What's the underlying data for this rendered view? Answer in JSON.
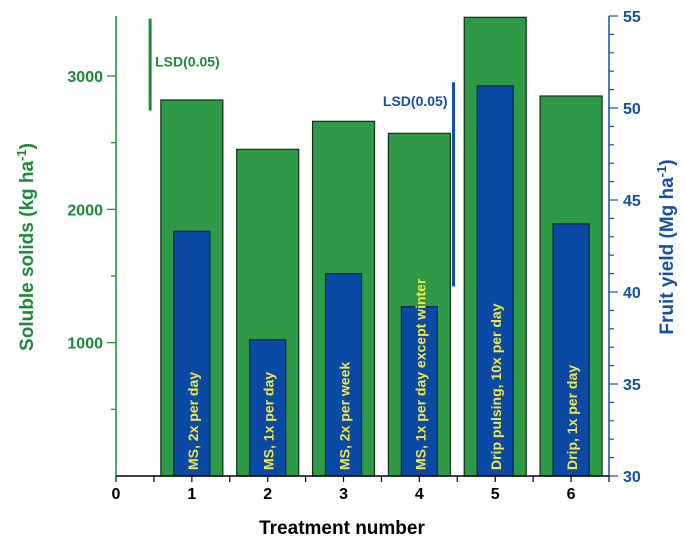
{
  "colors": {
    "green": "#2e9a48",
    "green_edge": "#0f2f17",
    "green_label": "#1b8b3a",
    "blue": "#0a4aa5",
    "blue_edge": "#061d45",
    "blue_label": "#1450a3",
    "bar_text": "#f0e64a",
    "axis": "#000000"
  },
  "chart_data": {
    "type": "bar",
    "xlabel": "Treatment number",
    "x_ticks": [
      "0",
      "1",
      "2",
      "3",
      "4",
      "5",
      "6"
    ],
    "xlim": [
      0,
      6.5
    ],
    "y_left": {
      "label": "Soluble solids (kg ha",
      "label_sup": "-1",
      "label_close": ")",
      "ylim": [
        0,
        3450
      ],
      "ticks": [
        1000,
        2000,
        3000
      ],
      "tick_labels": [
        "1000",
        "2000",
        "3000"
      ]
    },
    "y_right": {
      "label": "Fruit yield (Mg ha",
      "label_sup": "-1",
      "label_close": ")",
      "ylim": [
        30,
        55
      ],
      "ticks": [
        30,
        35,
        40,
        45,
        50,
        55
      ],
      "tick_labels": [
        "30",
        "35",
        "40",
        "45",
        "50",
        "55"
      ]
    },
    "series": [
      {
        "axis": "left",
        "values": [
          2820,
          2450,
          2660,
          2570,
          3440,
          2850
        ]
      },
      {
        "axis": "right",
        "values": [
          43.3,
          37.4,
          41.0,
          39.2,
          51.2,
          43.7
        ]
      }
    ],
    "treatments": [
      {
        "x": 1,
        "label": "MS, 2x per day"
      },
      {
        "x": 2,
        "label": "MS, 1x per day"
      },
      {
        "x": 3,
        "label": "MS, 2x per week"
      },
      {
        "x": 4,
        "label": "MS, 1x per day except winter"
      },
      {
        "x": 5,
        "label": "Drip pulsing, 10x per day"
      },
      {
        "x": 6,
        "label": "Drip, 1x per day"
      }
    ],
    "lsd": [
      {
        "label": "LSD(0.05)",
        "axis": "left",
        "x": 0.45,
        "y_from": 2740,
        "y_to": 3430
      },
      {
        "label": "LSD(0.05)",
        "axis": "right",
        "x": 4.45,
        "y_from": 40.3,
        "y_to": 51.4
      }
    ]
  }
}
